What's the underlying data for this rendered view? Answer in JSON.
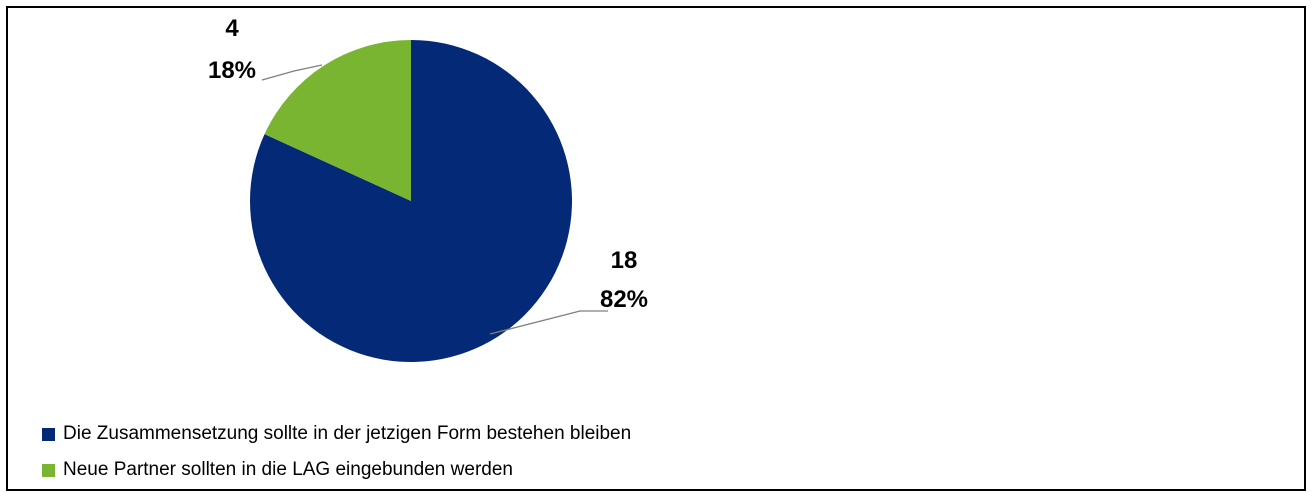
{
  "chart_data": {
    "type": "pie",
    "title": "",
    "start_angle_deg": 0,
    "direction": "clockwise",
    "slices": [
      {
        "label": "Die Zusammensetzung sollte in der jetzigen Form bestehen bleiben",
        "value": 18,
        "percent_label": "82%",
        "color": "#042a77"
      },
      {
        "label": "Neue Partner sollten in die LAG eingebunden werden",
        "value": 4,
        "percent_label": "18%",
        "color": "#7ab531"
      }
    ],
    "legend_position": "bottom-left",
    "data_labels": "value and percent, outside with leader lines"
  }
}
